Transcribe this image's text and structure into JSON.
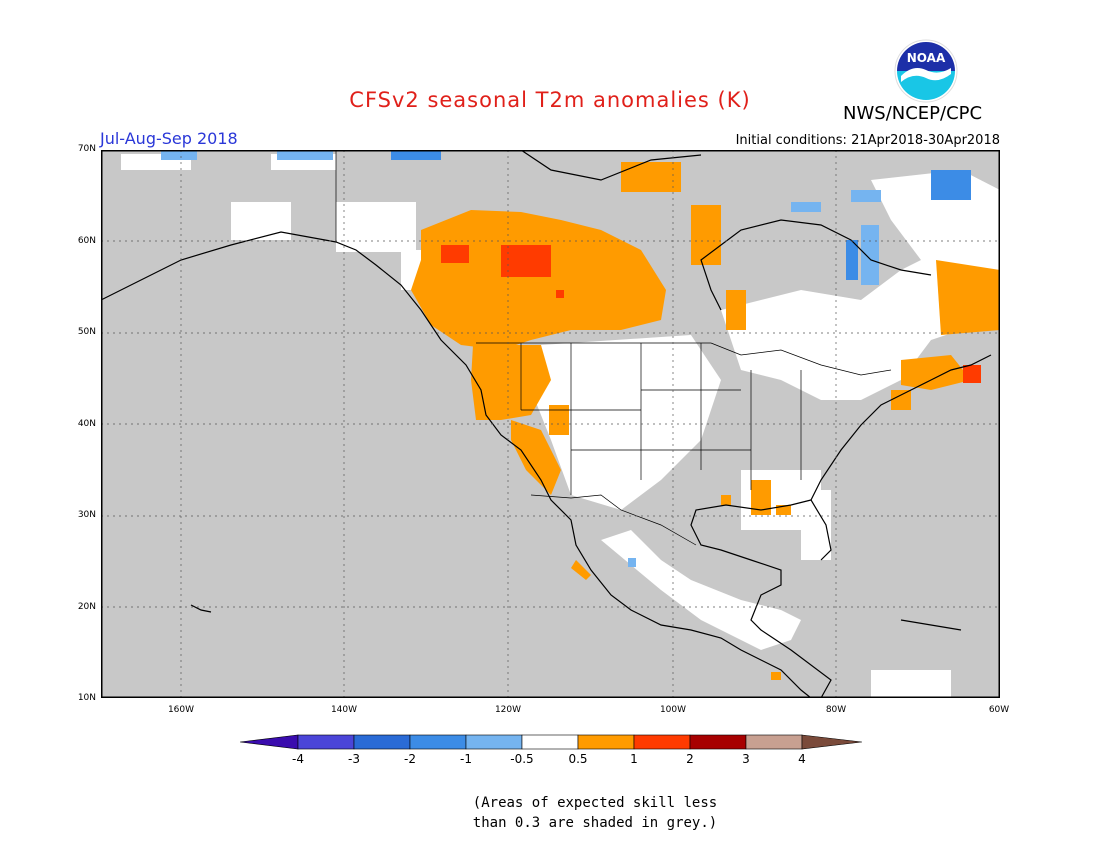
{
  "header": {
    "title": "CFSv2 seasonal T2m anomalies (K)",
    "agency": "NWS/NCEP/CPC",
    "season": "Jul-Aug-Sep 2018",
    "initial_conditions": "Initial conditions: 21Apr2018-30Apr2018",
    "logo_text": "NOAA"
  },
  "map": {
    "lat_labels": [
      "70N",
      "60N",
      "50N",
      "40N",
      "30N",
      "20N",
      "10N"
    ],
    "lon_labels": [
      "160W",
      "140W",
      "120W",
      "100W",
      "80W",
      "60W"
    ],
    "colors": {
      "skill_grey": "#c8c8c8",
      "neutral": "#ffffff",
      "warm_0_5_1": "#ff9b00",
      "warm_1_2": "#ff3b00",
      "cool_m1_m0_5": "#75b4f0",
      "cool_m2_m1": "#3c8ce6"
    }
  },
  "colorbar": {
    "labels": [
      "-4",
      "-3",
      "-2",
      "-1",
      "-0.5",
      "0.5",
      "1",
      "2",
      "3",
      "4"
    ],
    "colors": [
      "#3a0cae",
      "#4b45d8",
      "#2a6bd6",
      "#3c8ce6",
      "#75b4f0",
      "#ffffff",
      "#ff9b00",
      "#ff3b00",
      "#a70000",
      "#c8a091",
      "#7a4a3a"
    ]
  },
  "note": {
    "line1": "(Areas of expected skill less",
    "line2": "than 0.3 are shaded in grey.)"
  }
}
